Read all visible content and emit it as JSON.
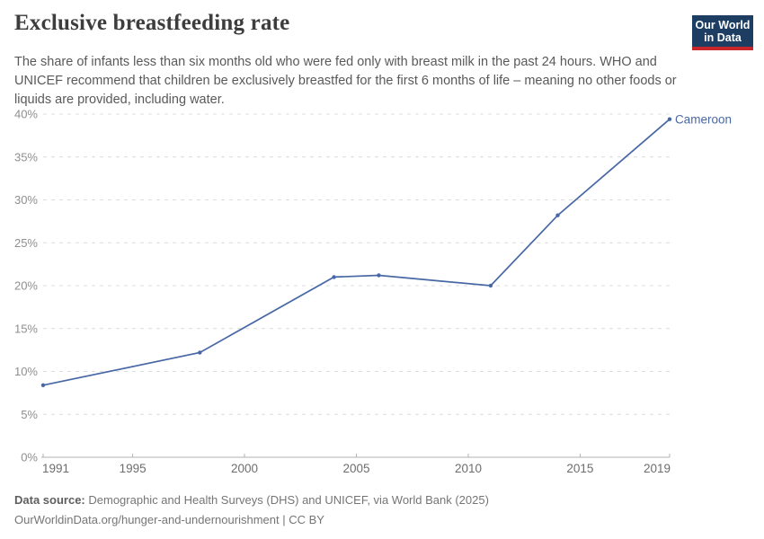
{
  "header": {
    "title": "Exclusive breastfeeding rate",
    "subtitle": "The share of infants less than six months old who were fed only with breast milk in the past 24 hours. WHO and UNICEF recommend that children be exclusively breastfed for the first 6 months of life – meaning no other foods or liquids are provided, including water.",
    "logo": {
      "line1": "Our World",
      "line2": "in Data",
      "bg_color": "#1d3d63",
      "accent_color": "#c9262b"
    }
  },
  "chart_data": {
    "type": "line",
    "title": "Exclusive breastfeeding rate",
    "xlabel": "",
    "ylabel": "",
    "xlim": [
      1991,
      2019
    ],
    "ylim": [
      0,
      40
    ],
    "grid": true,
    "x_ticks": [
      1991,
      1995,
      2000,
      2005,
      2010,
      2015,
      2019
    ],
    "y_ticks": [
      0,
      5,
      10,
      15,
      20,
      25,
      30,
      35,
      40
    ],
    "y_tick_suffix": "%",
    "series": [
      {
        "name": "Cameroon",
        "color": "#4868a5",
        "x": [
          1991,
          1998,
          2004,
          2006,
          2011,
          2014,
          2019
        ],
        "values": [
          8.4,
          12.2,
          21,
          21.2,
          20,
          28.2,
          39.4
        ]
      }
    ],
    "legend_position": "end-of-line-label"
  },
  "footer": {
    "data_source_label": "Data source:",
    "data_source_text": "Demographic and Health Surveys (DHS) and UNICEF, via World Bank (2025)",
    "link_line": "OurWorldinData.org/hunger-and-undernourishment | CC BY"
  }
}
